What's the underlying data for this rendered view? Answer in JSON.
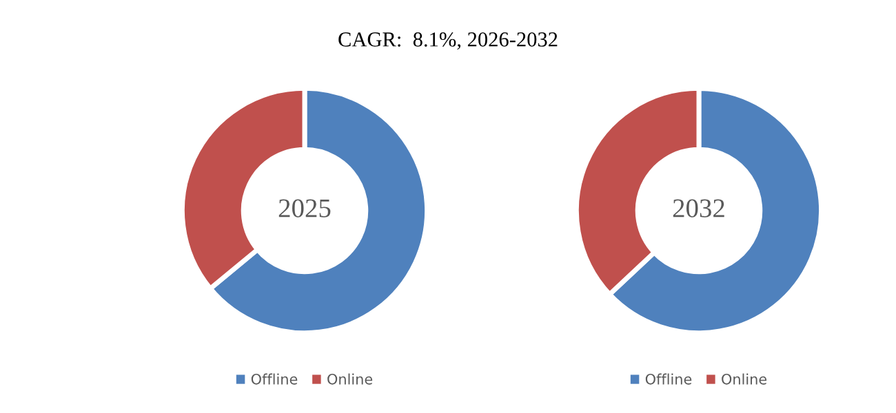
{
  "chart_data": [
    {
      "type": "donut",
      "title": "CAGR:  8.1%, 2026-2032",
      "categories": [
        "Offline",
        "Online"
      ],
      "values": [
        64,
        36
      ],
      "colors": [
        "#4f81bd",
        "#c0504d"
      ],
      "annotations": [
        "2025"
      ],
      "legend": "bottom"
    },
    {
      "type": "donut",
      "categories": [
        "Offline",
        "Online"
      ],
      "values": [
        63,
        37
      ],
      "colors": [
        "#4f81bd",
        "#c0504d"
      ],
      "annotations": [
        "2032"
      ],
      "legend": "bottom"
    }
  ]
}
